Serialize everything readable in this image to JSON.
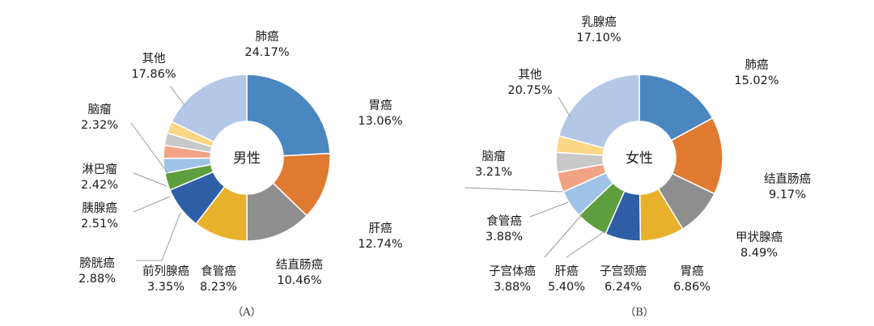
{
  "chart_data": [
    {
      "type": "pie",
      "panel_label": "（A）",
      "center_label": "男性",
      "slices": [
        {
          "name": "肺癌",
          "value": 24.17,
          "pct": "24.17%",
          "color": "#4a86c0"
        },
        {
          "name": "胃癌",
          "value": 13.06,
          "pct": "13.06%",
          "color": "#df7a30"
        },
        {
          "name": "肝癌",
          "value": 12.74,
          "pct": "12.74%",
          "color": "#8e8e8e"
        },
        {
          "name": "结直肠癌",
          "value": 10.46,
          "pct": "10.46%",
          "color": "#e8b12b"
        },
        {
          "name": "食管癌",
          "value": 8.23,
          "pct": "8.23%",
          "color": "#2e5fa6"
        },
        {
          "name": "前列腺癌",
          "value": 3.35,
          "pct": "3.35%",
          "color": "#5e9e3e"
        },
        {
          "name": "膀胱癌",
          "value": 2.88,
          "pct": "2.88%",
          "color": "#9ec3e6"
        },
        {
          "name": "胰腺癌",
          "value": 2.51,
          "pct": "2.51%",
          "color": "#f2a385"
        },
        {
          "name": "淋巴瘤",
          "value": 2.42,
          "pct": "2.42%",
          "color": "#c8c8c8"
        },
        {
          "name": "脑瘤",
          "value": 2.32,
          "pct": "2.32%",
          "color": "#fbd684"
        },
        {
          "name": "其他",
          "value": 17.86,
          "pct": "17.86%",
          "color": "#b4c7e7"
        }
      ]
    },
    {
      "type": "pie",
      "panel_label": "（B）",
      "center_label": "女性",
      "slices": [
        {
          "name": "乳腺癌",
          "value": 17.1,
          "pct": "17.10%",
          "color": "#4a86c0"
        },
        {
          "name": "肺癌",
          "value": 15.02,
          "pct": "15.02%",
          "color": "#df7a30"
        },
        {
          "name": "结直肠癌",
          "value": 9.17,
          "pct": "9.17%",
          "color": "#8e8e8e"
        },
        {
          "name": "甲状腺癌",
          "value": 8.49,
          "pct": "8.49%",
          "color": "#e8b12b"
        },
        {
          "name": "胃癌",
          "value": 6.86,
          "pct": "6.86%",
          "color": "#2e5fa6"
        },
        {
          "name": "子宫颈癌",
          "value": 6.24,
          "pct": "6.24%",
          "color": "#5e9e3e"
        },
        {
          "name": "肝癌",
          "value": 5.4,
          "pct": "5.40%",
          "color": "#9ec3e6"
        },
        {
          "name": "子宫体癌",
          "value": 3.88,
          "pct": "3.88%",
          "color": "#f2a385"
        },
        {
          "name": "食管癌",
          "value": 3.88,
          "pct": "3.88%",
          "color": "#c8c8c8"
        },
        {
          "name": "脑瘤",
          "value": 3.21,
          "pct": "3.21%",
          "color": "#fbd684"
        },
        {
          "name": "其他",
          "value": 20.75,
          "pct": "20.75%",
          "color": "#b4c7e7"
        }
      ]
    }
  ]
}
